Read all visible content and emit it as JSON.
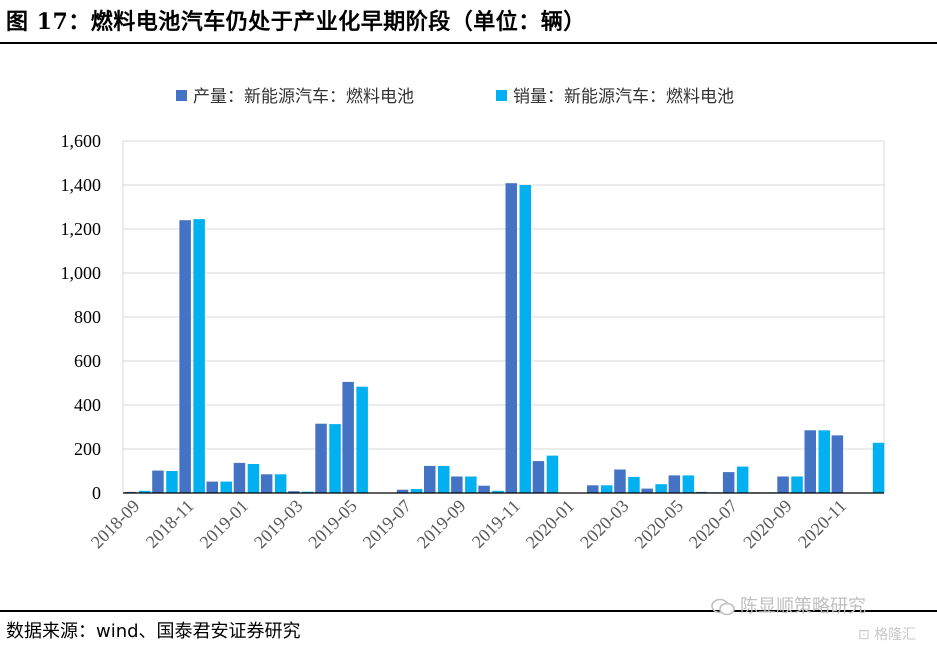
{
  "figure": {
    "title": "图 17：燃料电池汽车仍处于产业化早期阶段（单位：辆）",
    "source": "数据来源：wind、国泰君安证券研究",
    "watermark_account": "陈显顺策略研究",
    "watermark_site": "格隆汇"
  },
  "colors": {
    "production": "#4472C4",
    "sales": "#00B0F0",
    "grid": "#d9d9d9"
  },
  "chart_data": {
    "type": "bar",
    "title": "",
    "xlabel": "",
    "ylabel": "",
    "ylim": [
      0,
      1600
    ],
    "yticks": [
      0,
      200,
      400,
      600,
      800,
      1000,
      1200,
      1400,
      1600
    ],
    "ytick_labels": [
      "0",
      "200",
      "400",
      "600",
      "800",
      "1,000",
      "1,200",
      "1,400",
      "1,600"
    ],
    "categories": [
      "2018-09",
      "2018-10",
      "2018-11",
      "2018-12",
      "2019-01",
      "2019-02",
      "2019-03",
      "2019-04",
      "2019-05",
      "2019-06",
      "2019-07",
      "2019-08",
      "2019-09",
      "2019-10",
      "2019-11",
      "2019-12",
      "2020-01",
      "2020-02",
      "2020-03",
      "2020-04",
      "2020-05",
      "2020-06",
      "2020-07",
      "2020-08",
      "2020-09",
      "2020-10",
      "2020-11",
      "2020-12"
    ],
    "xtick_labels": [
      "2018-09",
      "2018-11",
      "2019-01",
      "2019-03",
      "2019-05",
      "2019-07",
      "2019-09",
      "2019-11",
      "2020-01",
      "2020-03",
      "2020-05",
      "2020-07",
      "2020-09",
      "2020-11"
    ],
    "grid": true,
    "legend_position": "top",
    "series": [
      {
        "name": "产量：新能源汽车：燃料电池",
        "values": [
          5,
          102,
          1240,
          52,
          137,
          85,
          8,
          315,
          505,
          2,
          15,
          123,
          75,
          33,
          1408,
          145,
          1,
          35,
          107,
          20,
          80,
          5,
          95,
          3,
          75,
          285,
          262,
          0
        ]
      },
      {
        "name": "销量：新能源汽车：燃料电池",
        "values": [
          10,
          100,
          1245,
          52,
          132,
          85,
          6,
          313,
          483,
          2,
          18,
          123,
          75,
          10,
          1400,
          170,
          1,
          35,
          73,
          40,
          80,
          3,
          120,
          3,
          75,
          285,
          0,
          228
        ]
      }
    ]
  }
}
